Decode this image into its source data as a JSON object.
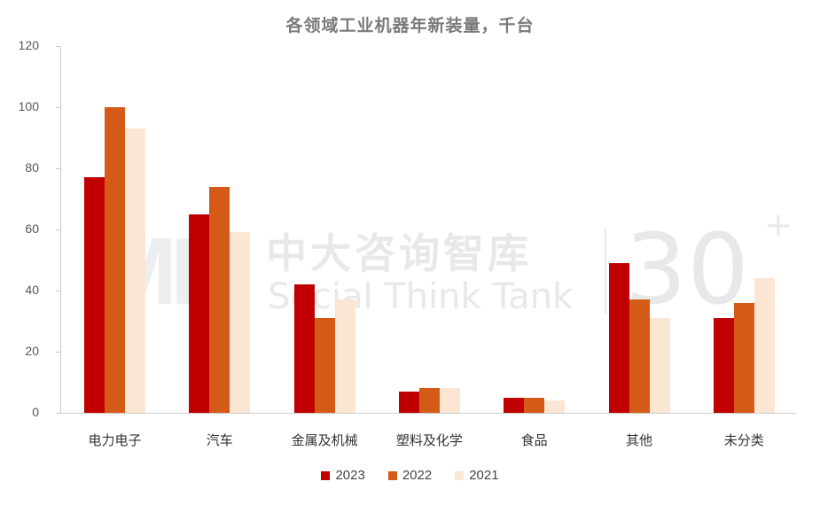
{
  "chart_data": {
    "type": "bar",
    "title": "各领域工业机器年新装量，千台",
    "xlabel": "",
    "ylabel": "",
    "ylim": [
      0,
      120
    ],
    "yticks": [
      0,
      20,
      40,
      60,
      80,
      100,
      120
    ],
    "grid": false,
    "legend_position": "bottom",
    "categories": [
      "电力电子",
      "汽车",
      "金属及机械",
      "塑料及化学",
      "食品",
      "其他",
      "未分类"
    ],
    "series": [
      {
        "name": "2023",
        "color": "#C00000",
        "values": [
          77,
          65,
          42,
          7,
          5,
          49,
          31
        ]
      },
      {
        "name": "2022",
        "color": "#D45B17",
        "values": [
          100,
          74,
          31,
          8,
          5,
          37,
          36
        ]
      },
      {
        "name": "2021",
        "color": "#FBE5D3",
        "values": [
          93,
          59,
          37,
          8,
          4,
          31,
          44
        ]
      }
    ]
  },
  "watermark": {
    "logo": "IMD",
    "cn": "中大咨询智库",
    "en": "Social Think Tank",
    "badge": "30",
    "plus": "+"
  }
}
